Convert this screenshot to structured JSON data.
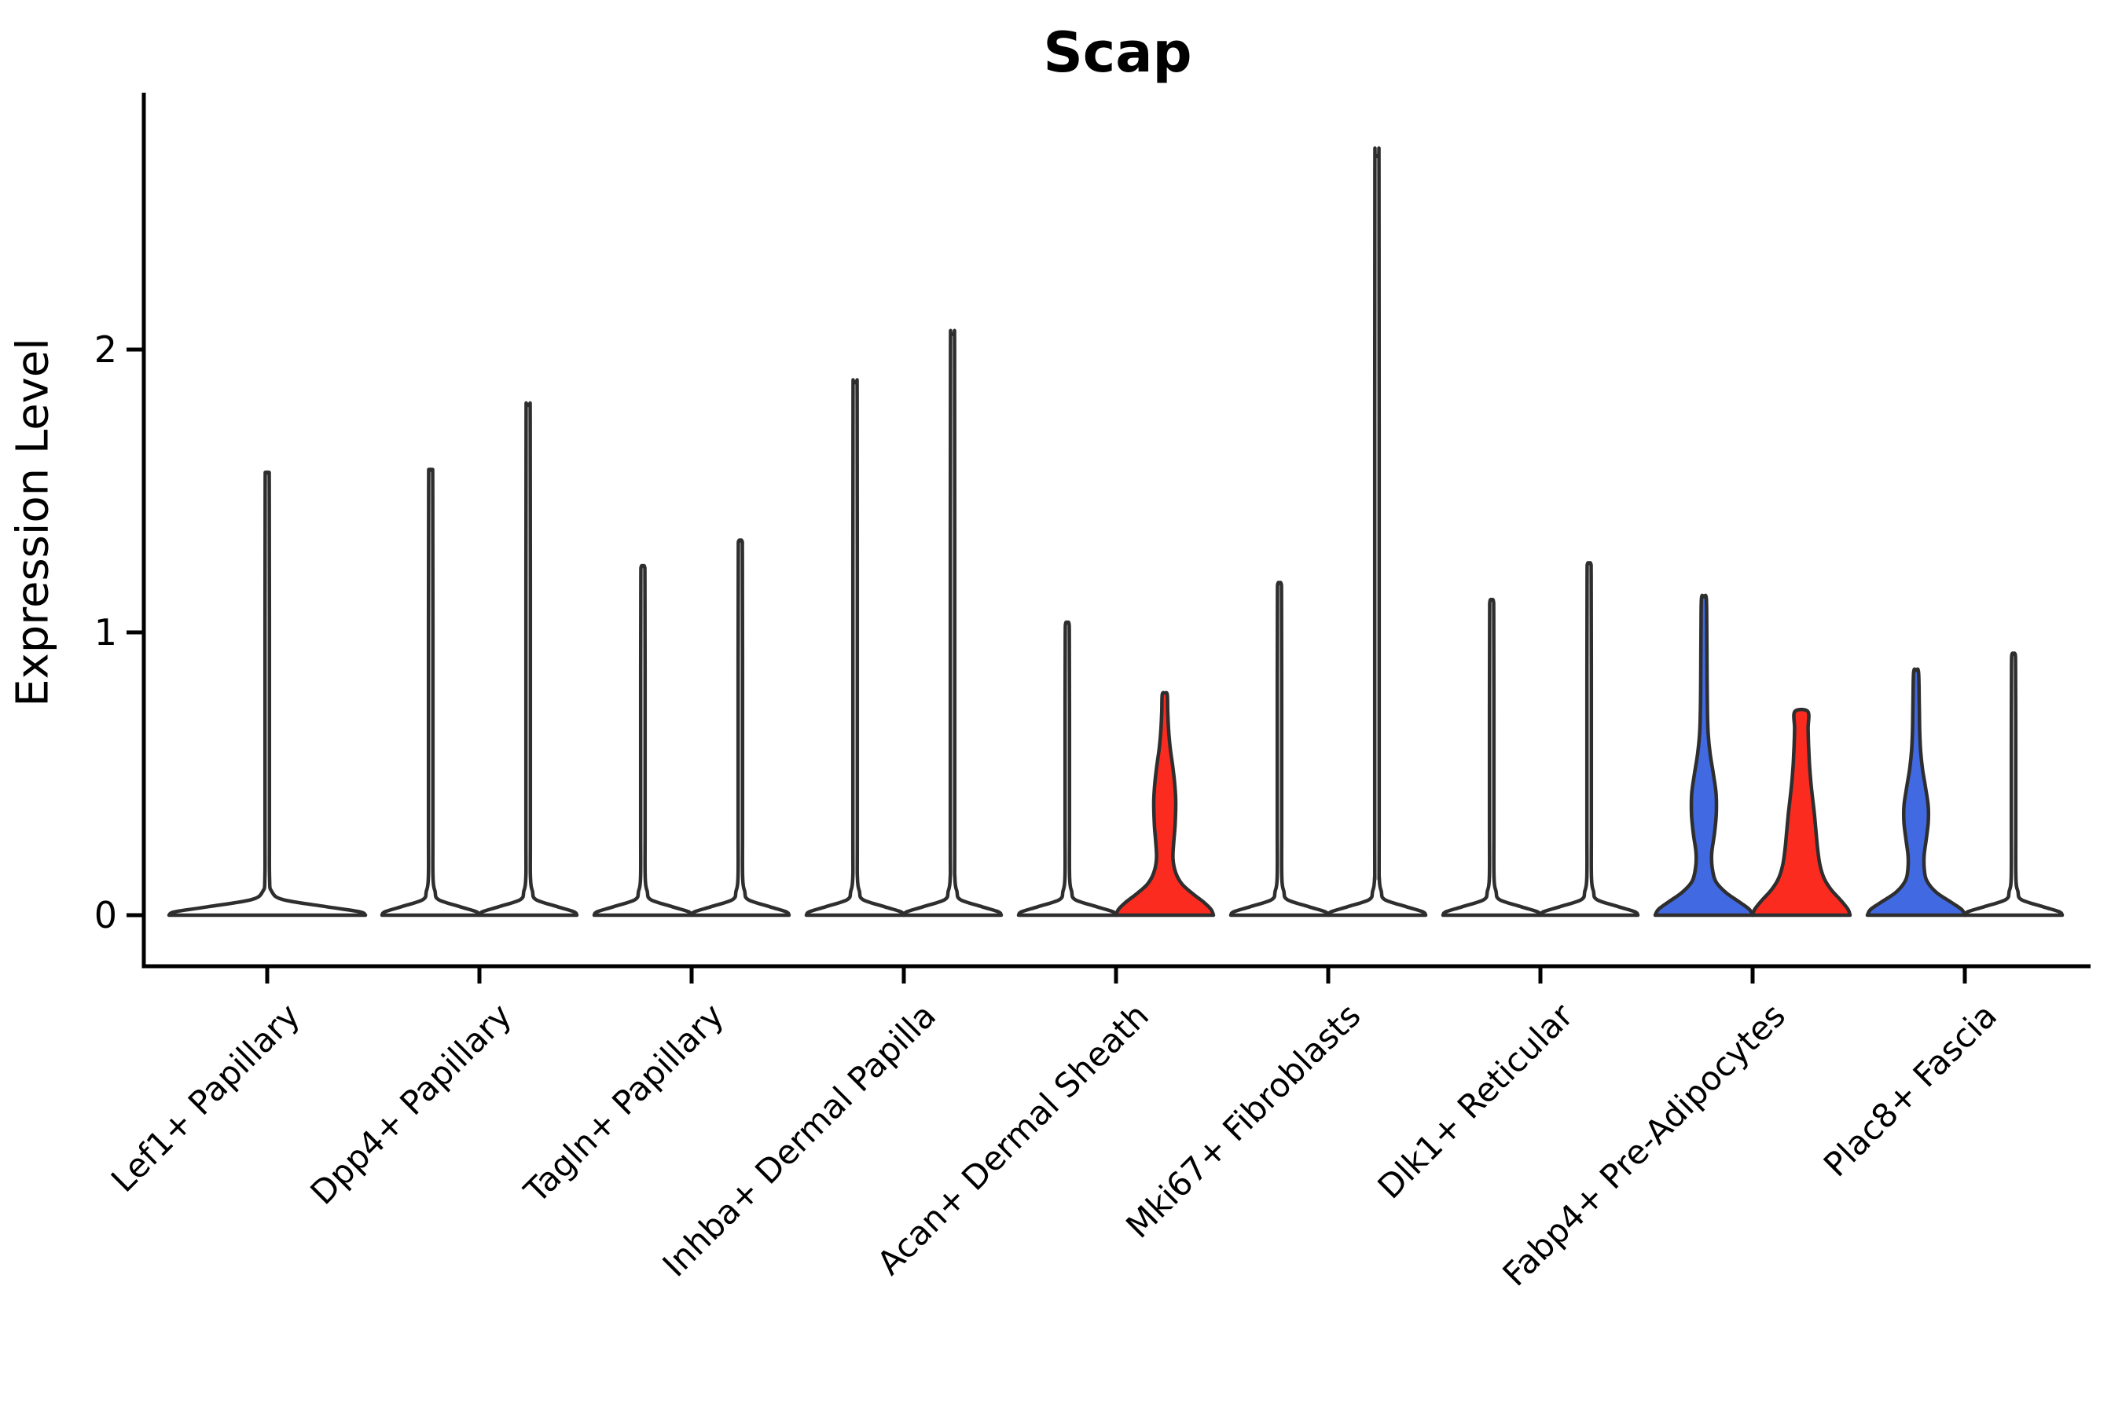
{
  "title": "Scap",
  "y_axis": {
    "label": "Expression Level",
    "ticks": [
      "0",
      "1",
      "2"
    ]
  },
  "chart_data": {
    "type": "violin",
    "title": "Scap",
    "xlabel": "",
    "ylabel": "Expression Level",
    "ylim": [
      -0.18,
      2.9
    ],
    "ytick_values": [
      0,
      1,
      2
    ],
    "grid": false,
    "legend": "none",
    "description": "Split violin plot of Scap expression; two violins per cell-type group (most collapse to a zero baseline with a thin max-expression spike); highlighted violins are filled blue or red",
    "categories": [
      "Lef1+ Papillary",
      "Dpp4+ Papillary",
      "Tagln+ Papillary",
      "Inhba+ Dermal Papilla",
      "Acan+ Dermal Sheath",
      "Mki67+ Fibroblasts",
      "Dlk1+ Reticular",
      "Fabp4+ Pre-Adipocytes",
      "Plac8+ Fascia"
    ],
    "groups": [
      {
        "category": "Lef1+ Papillary",
        "violins": [
          {
            "position": "center",
            "fill": "#FFFFFF",
            "shape": "spike",
            "max": 1.56,
            "base_half_width": 125
          }
        ]
      },
      {
        "category": "Dpp4+ Papillary",
        "violins": [
          {
            "position": "left",
            "fill": "#FFFFFF",
            "shape": "spike",
            "max": 1.57
          },
          {
            "position": "right",
            "fill": "#FFFFFF",
            "shape": "spike",
            "max": 1.8
          }
        ]
      },
      {
        "category": "Tagln+ Papillary",
        "violins": [
          {
            "position": "left",
            "fill": "#FFFFFF",
            "shape": "spike",
            "max": 1.23
          },
          {
            "position": "right",
            "fill": "#FFFFFF",
            "shape": "spike",
            "max": 1.32
          }
        ]
      },
      {
        "category": "Inhba+ Dermal Papilla",
        "violins": [
          {
            "position": "left",
            "fill": "#FFFFFF",
            "shape": "spike",
            "max": 1.88
          },
          {
            "position": "right",
            "fill": "#FFFFFF",
            "shape": "spike",
            "max": 2.05
          }
        ]
      },
      {
        "category": "Acan+ Dermal Sheath",
        "violins": [
          {
            "position": "left",
            "fill": "#FFFFFF",
            "shape": "spike",
            "max": 1.03
          },
          {
            "position": "right",
            "fill": "#FC2B20",
            "shape": "profile",
            "max": 0.78,
            "cap": "round",
            "profile": [
              [
                0,
                62
              ],
              [
                0.02,
                59
              ],
              [
                0.045,
                50
              ],
              [
                0.075,
                36
              ],
              [
                0.11,
                22
              ],
              [
                0.15,
                14
              ],
              [
                0.2,
                10.5
              ],
              [
                0.26,
                11.5
              ],
              [
                0.32,
                13.2
              ],
              [
                0.4,
                14
              ],
              [
                0.47,
                12.5
              ],
              [
                0.53,
                10
              ],
              [
                0.59,
                7
              ],
              [
                0.66,
                4.8
              ],
              [
                0.72,
                3.8
              ],
              [
                0.78,
                3.2
              ]
            ]
          }
        ]
      },
      {
        "category": "Mki67+ Fibroblasts",
        "violins": [
          {
            "position": "left",
            "fill": "#FFFFFF",
            "shape": "spike",
            "max": 1.17
          },
          {
            "position": "right",
            "fill": "#FFFFFF",
            "shape": "spike",
            "max": 2.68
          }
        ]
      },
      {
        "category": "Dlk1+ Reticular",
        "violins": [
          {
            "position": "left",
            "fill": "#FFFFFF",
            "shape": "spike",
            "max": 1.11
          },
          {
            "position": "right",
            "fill": "#FFFFFF",
            "shape": "spike",
            "max": 1.24
          }
        ]
      },
      {
        "category": "Fabp4+ Pre-Adipocytes",
        "violins": [
          {
            "position": "left",
            "fill": "#4169E1",
            "shape": "profile",
            "max": 1.12,
            "cap": "round",
            "profile": [
              [
                0,
                62
              ],
              [
                0.02,
                58
              ],
              [
                0.045,
                46
              ],
              [
                0.08,
                28
              ],
              [
                0.12,
                15
              ],
              [
                0.17,
                10.5
              ],
              [
                0.22,
                10
              ],
              [
                0.29,
                13.5
              ],
              [
                0.36,
                15.8
              ],
              [
                0.43,
                15.5
              ],
              [
                0.5,
                12
              ],
              [
                0.57,
                8
              ],
              [
                0.64,
                5.5
              ],
              [
                0.72,
                4.5
              ],
              [
                0.85,
                4
              ],
              [
                1.0,
                3.7
              ],
              [
                1.12,
                3.1
              ]
            ]
          },
          {
            "position": "right",
            "fill": "#FC2B20",
            "shape": "profile",
            "max": 0.72,
            "cap": "flat",
            "profile": [
              [
                0,
                62
              ],
              [
                0.02,
                59.5
              ],
              [
                0.05,
                51
              ],
              [
                0.09,
                38
              ],
              [
                0.13,
                29
              ],
              [
                0.18,
                23.5
              ],
              [
                0.24,
                20.5
              ],
              [
                0.3,
                18.5
              ],
              [
                0.36,
                16.5
              ],
              [
                0.42,
                14
              ],
              [
                0.48,
                11.8
              ],
              [
                0.54,
                10.2
              ],
              [
                0.6,
                9.2
              ],
              [
                0.66,
                8.6
              ],
              [
                0.72,
                8.3
              ]
            ]
          }
        ]
      },
      {
        "category": "Plac8+ Fascia",
        "violins": [
          {
            "position": "left",
            "fill": "#4169E1",
            "shape": "profile",
            "max": 0.86,
            "cap": "round",
            "profile": [
              [
                0,
                62
              ],
              [
                0.02,
                58
              ],
              [
                0.045,
                45
              ],
              [
                0.08,
                26
              ],
              [
                0.12,
                14
              ],
              [
                0.16,
                10.5
              ],
              [
                0.21,
                10.2
              ],
              [
                0.27,
                13
              ],
              [
                0.33,
                15.5
              ],
              [
                0.39,
                15.3
              ],
              [
                0.46,
                11.5
              ],
              [
                0.52,
                8
              ],
              [
                0.58,
                5.8
              ],
              [
                0.65,
                4.6
              ],
              [
                0.75,
                4
              ],
              [
                0.86,
                3.1
              ]
            ]
          },
          {
            "position": "right",
            "fill": "#FFFFFF",
            "shape": "spike",
            "max": 0.92
          }
        ]
      }
    ],
    "colors": {
      "blue": "#4169E1",
      "red": "#FC2B20",
      "violin_outline": "#2E2E2E",
      "axis": "#000000",
      "text": "#000000"
    }
  }
}
